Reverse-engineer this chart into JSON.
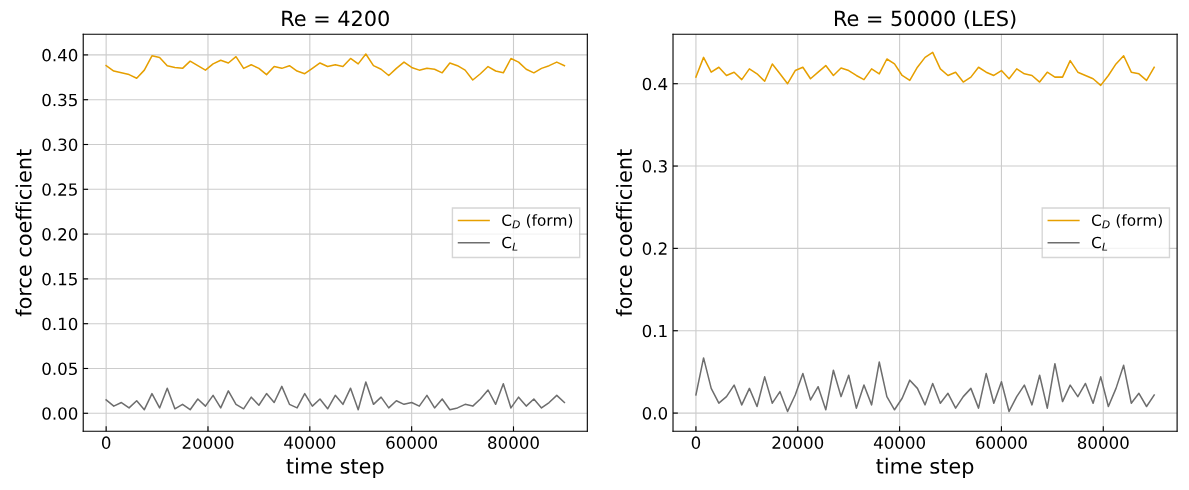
{
  "chart_data": [
    {
      "type": "line",
      "title": "Re = 4200",
      "xlabel": "time step",
      "ylabel": "force coefficient",
      "x": [
        0,
        1500,
        3000,
        4500,
        6000,
        7500,
        9000,
        10500,
        12000,
        13500,
        15000,
        16500,
        18000,
        19500,
        21000,
        22500,
        24000,
        25500,
        27000,
        28500,
        30000,
        31500,
        33000,
        34500,
        36000,
        37500,
        39000,
        40500,
        42000,
        43500,
        45000,
        46500,
        48000,
        49500,
        51000,
        52500,
        54000,
        55500,
        57000,
        58500,
        60000,
        61500,
        63000,
        64500,
        66000,
        67500,
        69000,
        70500,
        72000,
        73500,
        75000,
        76500,
        78000,
        79500,
        81000,
        82500,
        84000,
        85500,
        87000,
        88500,
        90000
      ],
      "series": [
        {
          "name": "C$_{D}$ (form)",
          "color": "#e69f00",
          "values": [
            0.388,
            0.382,
            0.38,
            0.378,
            0.374,
            0.383,
            0.399,
            0.397,
            0.388,
            0.386,
            0.385,
            0.393,
            0.388,
            0.383,
            0.39,
            0.394,
            0.391,
            0.398,
            0.385,
            0.389,
            0.385,
            0.378,
            0.387,
            0.385,
            0.388,
            0.382,
            0.379,
            0.385,
            0.391,
            0.387,
            0.389,
            0.387,
            0.396,
            0.39,
            0.401,
            0.388,
            0.384,
            0.377,
            0.385,
            0.392,
            0.386,
            0.383,
            0.385,
            0.384,
            0.38,
            0.391,
            0.388,
            0.383,
            0.372,
            0.379,
            0.387,
            0.382,
            0.38,
            0.396,
            0.392,
            0.384,
            0.38,
            0.385,
            0.388,
            0.392,
            0.388
          ]
        },
        {
          "name": "C$_{L}$",
          "color": "#6e6e6e",
          "values": [
            0.015,
            0.008,
            0.012,
            0.006,
            0.014,
            0.004,
            0.022,
            0.006,
            0.028,
            0.005,
            0.01,
            0.004,
            0.016,
            0.008,
            0.02,
            0.006,
            0.025,
            0.01,
            0.005,
            0.018,
            0.009,
            0.022,
            0.012,
            0.03,
            0.01,
            0.006,
            0.022,
            0.008,
            0.016,
            0.005,
            0.02,
            0.01,
            0.028,
            0.004,
            0.035,
            0.01,
            0.018,
            0.006,
            0.014,
            0.01,
            0.012,
            0.008,
            0.02,
            0.006,
            0.016,
            0.004,
            0.006,
            0.01,
            0.008,
            0.016,
            0.026,
            0.01,
            0.033,
            0.006,
            0.018,
            0.008,
            0.016,
            0.006,
            0.012,
            0.02,
            0.012
          ]
        }
      ],
      "xlim": [
        -4500,
        94500
      ],
      "xticks": [
        0,
        20000,
        40000,
        60000,
        80000
      ],
      "ylim": [
        -0.02,
        0.423
      ],
      "yticks": [
        {
          "value": 0,
          "label": "0.00"
        },
        {
          "value": 0.05,
          "label": "0.05"
        },
        {
          "value": 0.1,
          "label": "0.10"
        },
        {
          "value": 0.15,
          "label": "0.15"
        },
        {
          "value": 0.2,
          "label": "0.20"
        },
        {
          "value": 0.25,
          "label": "0.25"
        },
        {
          "value": 0.3,
          "label": "0.30"
        },
        {
          "value": 0.35,
          "label": "0.35"
        },
        {
          "value": 0.4,
          "label": "0.40"
        }
      ],
      "grid": true,
      "legend": "right"
    },
    {
      "type": "line",
      "title": "Re = 50000 (LES)",
      "xlabel": "time step",
      "ylabel": "force coefficient",
      "x": [
        0,
        1500,
        3000,
        4500,
        6000,
        7500,
        9000,
        10500,
        12000,
        13500,
        15000,
        16500,
        18000,
        19500,
        21000,
        22500,
        24000,
        25500,
        27000,
        28500,
        30000,
        31500,
        33000,
        34500,
        36000,
        37500,
        39000,
        40500,
        42000,
        43500,
        45000,
        46500,
        48000,
        49500,
        51000,
        52500,
        54000,
        55500,
        57000,
        58500,
        60000,
        61500,
        63000,
        64500,
        66000,
        67500,
        69000,
        70500,
        72000,
        73500,
        75000,
        76500,
        78000,
        79500,
        81000,
        82500,
        84000,
        85500,
        87000,
        88500,
        90000
      ],
      "series": [
        {
          "name": "C$_{D}$ (form)",
          "color": "#e69f00",
          "values": [
            0.408,
            0.432,
            0.414,
            0.42,
            0.41,
            0.414,
            0.405,
            0.418,
            0.412,
            0.403,
            0.424,
            0.412,
            0.4,
            0.416,
            0.42,
            0.406,
            0.414,
            0.422,
            0.41,
            0.419,
            0.416,
            0.41,
            0.405,
            0.418,
            0.412,
            0.43,
            0.424,
            0.41,
            0.404,
            0.42,
            0.432,
            0.438,
            0.418,
            0.41,
            0.414,
            0.402,
            0.408,
            0.42,
            0.414,
            0.41,
            0.416,
            0.406,
            0.418,
            0.412,
            0.41,
            0.402,
            0.414,
            0.408,
            0.408,
            0.428,
            0.414,
            0.41,
            0.406,
            0.398,
            0.41,
            0.424,
            0.434,
            0.414,
            0.412,
            0.404,
            0.42
          ]
        },
        {
          "name": "C$_{L}$",
          "color": "#6e6e6e",
          "values": [
            0.022,
            0.067,
            0.03,
            0.012,
            0.02,
            0.034,
            0.01,
            0.03,
            0.008,
            0.044,
            0.012,
            0.026,
            0.002,
            0.022,
            0.048,
            0.016,
            0.032,
            0.004,
            0.052,
            0.02,
            0.046,
            0.006,
            0.034,
            0.01,
            0.062,
            0.02,
            0.004,
            0.018,
            0.04,
            0.03,
            0.01,
            0.036,
            0.012,
            0.024,
            0.006,
            0.02,
            0.03,
            0.006,
            0.048,
            0.012,
            0.038,
            0.002,
            0.02,
            0.034,
            0.01,
            0.046,
            0.006,
            0.06,
            0.014,
            0.034,
            0.02,
            0.036,
            0.012,
            0.044,
            0.008,
            0.03,
            0.058,
            0.012,
            0.024,
            0.008,
            0.022
          ]
        }
      ],
      "xlim": [
        -4500,
        94500
      ],
      "xticks": [
        0,
        20000,
        40000,
        60000,
        80000
      ],
      "ylim": [
        -0.022,
        0.46
      ],
      "yticks": [
        {
          "value": 0,
          "label": "0.0"
        },
        {
          "value": 0.1,
          "label": "0.1"
        },
        {
          "value": 0.2,
          "label": "0.2"
        },
        {
          "value": 0.3,
          "label": "0.3"
        },
        {
          "value": 0.4,
          "label": "0.4"
        }
      ],
      "grid": true,
      "legend": "right"
    }
  ]
}
